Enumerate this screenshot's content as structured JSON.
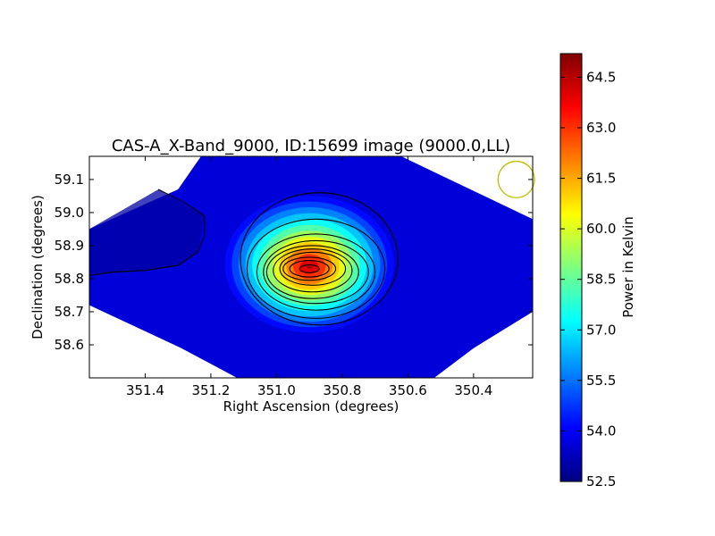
{
  "chart_data": {
    "type": "heatmap",
    "title": "CAS-A_X-Band_9000, ID:15699 image (9000.0,LL)",
    "xlabel": "Right Ascension (degrees)",
    "ylabel": "Declination (degrees)",
    "xlim": [
      351.57,
      350.22
    ],
    "ylim": [
      58.5,
      59.17
    ],
    "x_ticks": [
      {
        "value": 351.4,
        "label": "351.4"
      },
      {
        "value": 351.2,
        "label": "351.2"
      },
      {
        "value": 351.0,
        "label": "351.0"
      },
      {
        "value": 350.8,
        "label": "350.8"
      },
      {
        "value": 350.6,
        "label": "350.6"
      },
      {
        "value": 350.4,
        "label": "350.4"
      }
    ],
    "y_ticks": [
      {
        "value": 58.6,
        "label": "58.6"
      },
      {
        "value": 58.7,
        "label": "58.7"
      },
      {
        "value": 58.8,
        "label": "58.8"
      },
      {
        "value": 58.9,
        "label": "58.9"
      },
      {
        "value": 59.0,
        "label": "59.0"
      },
      {
        "value": 59.1,
        "label": "59.1"
      }
    ],
    "peak": {
      "ra": 350.9,
      "dec": 58.835,
      "value": 65.0
    },
    "background_level": 53.6,
    "contours": [
      {
        "ra": 350.9,
        "dec": 58.83,
        "rx": 0.03,
        "ry": 0.012
      },
      {
        "ra": 350.9,
        "dec": 58.83,
        "rx": 0.06,
        "ry": 0.025
      },
      {
        "ra": 350.9,
        "dec": 58.83,
        "rx": 0.08,
        "ry": 0.035
      },
      {
        "ra": 350.89,
        "dec": 58.83,
        "rx": 0.1,
        "ry": 0.05
      },
      {
        "ra": 350.89,
        "dec": 58.825,
        "rx": 0.12,
        "ry": 0.065
      },
      {
        "ra": 350.89,
        "dec": 58.82,
        "rx": 0.14,
        "ry": 0.08
      },
      {
        "ra": 350.88,
        "dec": 58.82,
        "rx": 0.16,
        "ry": 0.095
      },
      {
        "ra": 350.88,
        "dec": 58.82,
        "rx": 0.18,
        "ry": 0.115
      },
      {
        "ra": 350.88,
        "dec": 58.83,
        "rx": 0.21,
        "ry": 0.15
      },
      {
        "ra": 350.87,
        "dec": 58.86,
        "rx": 0.24,
        "ry": 0.2
      }
    ],
    "low_contour": [
      [
        351.57,
        58.81
      ],
      [
        351.5,
        58.82
      ],
      [
        351.4,
        58.825
      ],
      [
        351.3,
        58.84
      ],
      [
        351.24,
        58.88
      ],
      [
        351.22,
        58.93
      ],
      [
        351.22,
        58.99
      ],
      [
        351.28,
        59.03
      ],
      [
        351.36,
        59.07
      ]
    ],
    "beam": {
      "ra": 350.27,
      "dec": 59.1,
      "radius": 0.055
    },
    "colorbar": {
      "label": "Power in Kelvin",
      "min": 52.5,
      "max": 65.2,
      "ticks": [
        "52.5",
        "54.0",
        "55.5",
        "57.0",
        "58.5",
        "60.0",
        "61.5",
        "63.0",
        "64.5"
      ],
      "colormap": [
        "#00007f",
        "#0000ff",
        "#007fff",
        "#00ffff",
        "#7fff7f",
        "#ffff00",
        "#ff7f00",
        "#ff0000",
        "#7f0000"
      ]
    },
    "colors": {
      "contour": "#000000",
      "beam": "#bfbf00",
      "frame": "#000000"
    }
  }
}
